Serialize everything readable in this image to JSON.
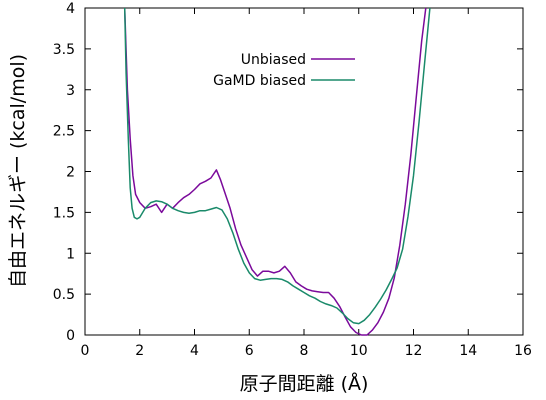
{
  "chart_data": {
    "type": "line",
    "xlabel": "原子間距離 (Å)",
    "ylabel": "自由エネルギー (kcal/mol)",
    "xlim": [
      0,
      16
    ],
    "ylim": [
      0,
      4
    ],
    "xticks": [
      0,
      2,
      4,
      6,
      8,
      10,
      12,
      14,
      16
    ],
    "yticks": [
      0,
      0.5,
      1,
      1.5,
      2,
      2.5,
      3,
      3.5,
      4
    ],
    "grid": false,
    "legend_position": "top-center",
    "series": [
      {
        "name": "Unbiased",
        "color": "#7b0a9b",
        "points": [
          [
            1.45,
            4.0
          ],
          [
            1.55,
            3.0
          ],
          [
            1.65,
            2.4
          ],
          [
            1.75,
            1.95
          ],
          [
            1.85,
            1.72
          ],
          [
            2.0,
            1.62
          ],
          [
            2.2,
            1.55
          ],
          [
            2.4,
            1.57
          ],
          [
            2.6,
            1.6
          ],
          [
            2.8,
            1.5
          ],
          [
            3.0,
            1.6
          ],
          [
            3.2,
            1.55
          ],
          [
            3.4,
            1.62
          ],
          [
            3.6,
            1.68
          ],
          [
            3.8,
            1.72
          ],
          [
            4.0,
            1.78
          ],
          [
            4.2,
            1.85
          ],
          [
            4.4,
            1.88
          ],
          [
            4.6,
            1.92
          ],
          [
            4.8,
            2.02
          ],
          [
            4.95,
            1.9
          ],
          [
            5.1,
            1.75
          ],
          [
            5.3,
            1.55
          ],
          [
            5.5,
            1.3
          ],
          [
            5.7,
            1.1
          ],
          [
            5.9,
            0.95
          ],
          [
            6.1,
            0.8
          ],
          [
            6.3,
            0.72
          ],
          [
            6.5,
            0.78
          ],
          [
            6.7,
            0.78
          ],
          [
            6.9,
            0.76
          ],
          [
            7.1,
            0.78
          ],
          [
            7.3,
            0.84
          ],
          [
            7.5,
            0.76
          ],
          [
            7.7,
            0.65
          ],
          [
            7.9,
            0.6
          ],
          [
            8.1,
            0.56
          ],
          [
            8.3,
            0.54
          ],
          [
            8.5,
            0.53
          ],
          [
            8.7,
            0.52
          ],
          [
            8.9,
            0.52
          ],
          [
            9.1,
            0.45
          ],
          [
            9.3,
            0.35
          ],
          [
            9.5,
            0.22
          ],
          [
            9.7,
            0.1
          ],
          [
            9.9,
            0.03
          ],
          [
            10.1,
            0.0
          ],
          [
            10.3,
            0.0
          ],
          [
            10.5,
            0.06
          ],
          [
            10.7,
            0.15
          ],
          [
            10.9,
            0.28
          ],
          [
            11.1,
            0.45
          ],
          [
            11.3,
            0.7
          ],
          [
            11.5,
            1.1
          ],
          [
            11.7,
            1.6
          ],
          [
            11.9,
            2.2
          ],
          [
            12.1,
            2.9
          ],
          [
            12.3,
            3.6
          ],
          [
            12.45,
            4.0
          ]
        ]
      },
      {
        "name": "GaMD biased",
        "color": "#1a8a6a",
        "points": [
          [
            1.45,
            4.0
          ],
          [
            1.5,
            3.2
          ],
          [
            1.58,
            2.4
          ],
          [
            1.65,
            1.8
          ],
          [
            1.72,
            1.55
          ],
          [
            1.8,
            1.44
          ],
          [
            1.9,
            1.42
          ],
          [
            2.0,
            1.44
          ],
          [
            2.2,
            1.55
          ],
          [
            2.4,
            1.62
          ],
          [
            2.6,
            1.64
          ],
          [
            2.8,
            1.63
          ],
          [
            3.0,
            1.6
          ],
          [
            3.2,
            1.55
          ],
          [
            3.4,
            1.52
          ],
          [
            3.6,
            1.5
          ],
          [
            3.8,
            1.49
          ],
          [
            4.0,
            1.5
          ],
          [
            4.2,
            1.52
          ],
          [
            4.4,
            1.52
          ],
          [
            4.6,
            1.54
          ],
          [
            4.8,
            1.56
          ],
          [
            5.0,
            1.53
          ],
          [
            5.2,
            1.42
          ],
          [
            5.4,
            1.25
          ],
          [
            5.6,
            1.05
          ],
          [
            5.8,
            0.88
          ],
          [
            6.0,
            0.76
          ],
          [
            6.2,
            0.69
          ],
          [
            6.4,
            0.67
          ],
          [
            6.6,
            0.68
          ],
          [
            6.8,
            0.69
          ],
          [
            7.0,
            0.69
          ],
          [
            7.2,
            0.68
          ],
          [
            7.4,
            0.65
          ],
          [
            7.6,
            0.6
          ],
          [
            7.8,
            0.56
          ],
          [
            8.0,
            0.52
          ],
          [
            8.2,
            0.48
          ],
          [
            8.4,
            0.45
          ],
          [
            8.6,
            0.41
          ],
          [
            8.8,
            0.38
          ],
          [
            9.0,
            0.36
          ],
          [
            9.2,
            0.33
          ],
          [
            9.4,
            0.27
          ],
          [
            9.6,
            0.2
          ],
          [
            9.8,
            0.15
          ],
          [
            10.0,
            0.14
          ],
          [
            10.2,
            0.18
          ],
          [
            10.4,
            0.25
          ],
          [
            10.6,
            0.34
          ],
          [
            10.8,
            0.44
          ],
          [
            11.0,
            0.55
          ],
          [
            11.2,
            0.68
          ],
          [
            11.4,
            0.82
          ],
          [
            11.6,
            1.05
          ],
          [
            11.8,
            1.45
          ],
          [
            12.0,
            1.95
          ],
          [
            12.2,
            2.6
          ],
          [
            12.4,
            3.3
          ],
          [
            12.6,
            4.0
          ]
        ]
      }
    ]
  }
}
